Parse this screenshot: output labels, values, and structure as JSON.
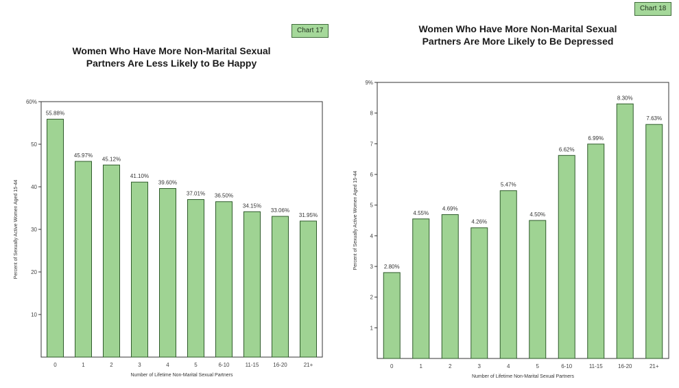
{
  "charts": [
    {
      "badge": "Chart 17",
      "title_line1": "Women Who Have More Non-Marital Sexual",
      "title_line2": "Partners Are Less Likely to Be Happy"
    },
    {
      "badge": "Chart 18",
      "title_line1": "Women Who Have More Non-Marital Sexual",
      "title_line2": "Partners Are More Likely to Be Depressed"
    }
  ],
  "colors": {
    "bar": "#9fd393",
    "bar_stroke": "#2e5a2a",
    "axis": "#333333"
  },
  "chart_data": [
    {
      "type": "bar",
      "title": "Women Who Have More Non-Marital Sexual Partners Are Less Likely to Be Happy",
      "categories": [
        "0",
        "1",
        "2",
        "3",
        "4",
        "5",
        "6-10",
        "11-15",
        "16-20",
        "21+"
      ],
      "values": [
        55.88,
        45.97,
        45.12,
        41.1,
        39.6,
        37.01,
        36.5,
        34.15,
        33.06,
        31.95
      ],
      "labels": [
        "55.88%",
        "45.97%",
        "45.12%",
        "41.10%",
        "39.60%",
        "37.01%",
        "36.50%",
        "34.15%",
        "33.06%",
        "31.95%"
      ],
      "xlabel": "Number of Lifetime Non-Marital Sexual Partners",
      "ylabel": "Percent of Sexually Active Women Aged 15-44",
      "ylim": [
        0,
        60
      ],
      "yticks": [
        10,
        20,
        30,
        40,
        50,
        60
      ],
      "ytick_labels": [
        "10",
        "20",
        "30",
        "40",
        "50",
        "60%"
      ],
      "grid": false
    },
    {
      "type": "bar",
      "title": "Women Who Have More Non-Marital Sexual Partners Are More Likely to Be Depressed",
      "categories": [
        "0",
        "1",
        "2",
        "3",
        "4",
        "5",
        "6-10",
        "11-15",
        "16-20",
        "21+"
      ],
      "values": [
        2.8,
        4.55,
        4.69,
        4.26,
        5.47,
        4.5,
        6.62,
        6.99,
        8.3,
        7.63
      ],
      "labels": [
        "2.80%",
        "4.55%",
        "4.69%",
        "4.26%",
        "5.47%",
        "4.50%",
        "6.62%",
        "6.99%",
        "8.30%",
        "7.63%"
      ],
      "xlabel": "Number of Lifetime Non-Marital Sexual Partners",
      "ylabel": "Percent of Sexually Active Women Aged 15-44",
      "ylim": [
        0,
        9
      ],
      "yticks": [
        1,
        2,
        3,
        4,
        5,
        6,
        7,
        8,
        9
      ],
      "ytick_labels": [
        "1",
        "2",
        "3",
        "4",
        "5",
        "6",
        "7",
        "8",
        "9%"
      ],
      "grid": false
    }
  ]
}
